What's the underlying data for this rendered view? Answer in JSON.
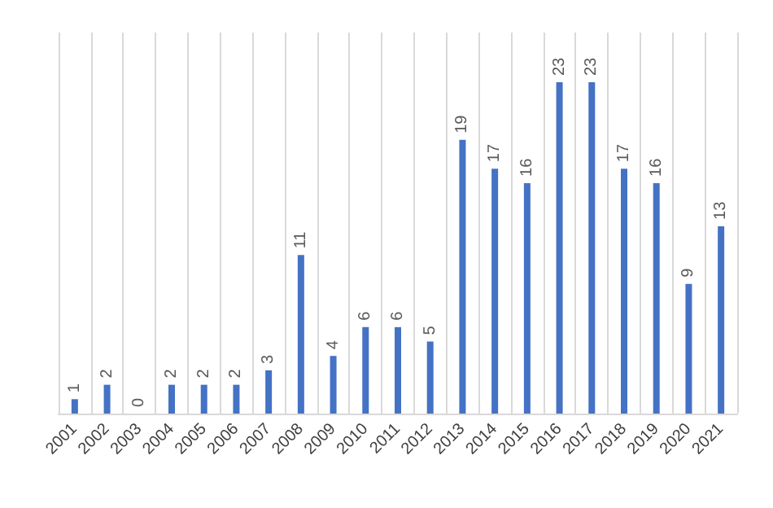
{
  "chart_data": {
    "type": "bar",
    "categories": [
      "2001",
      "2002",
      "2003",
      "2004",
      "2005",
      "2006",
      "2007",
      "2008",
      "2009",
      "2010",
      "2011",
      "2012",
      "2013",
      "2014",
      "2015",
      "2016",
      "2017",
      "2018",
      "2019",
      "2020",
      "2021"
    ],
    "values": [
      1,
      2,
      0,
      2,
      2,
      2,
      3,
      11,
      4,
      6,
      6,
      5,
      19,
      17,
      16,
      23,
      23,
      17,
      16,
      9,
      13
    ],
    "color": "#4472c4",
    "data_labels": true,
    "grid": "x",
    "tick_labels": "x"
  }
}
